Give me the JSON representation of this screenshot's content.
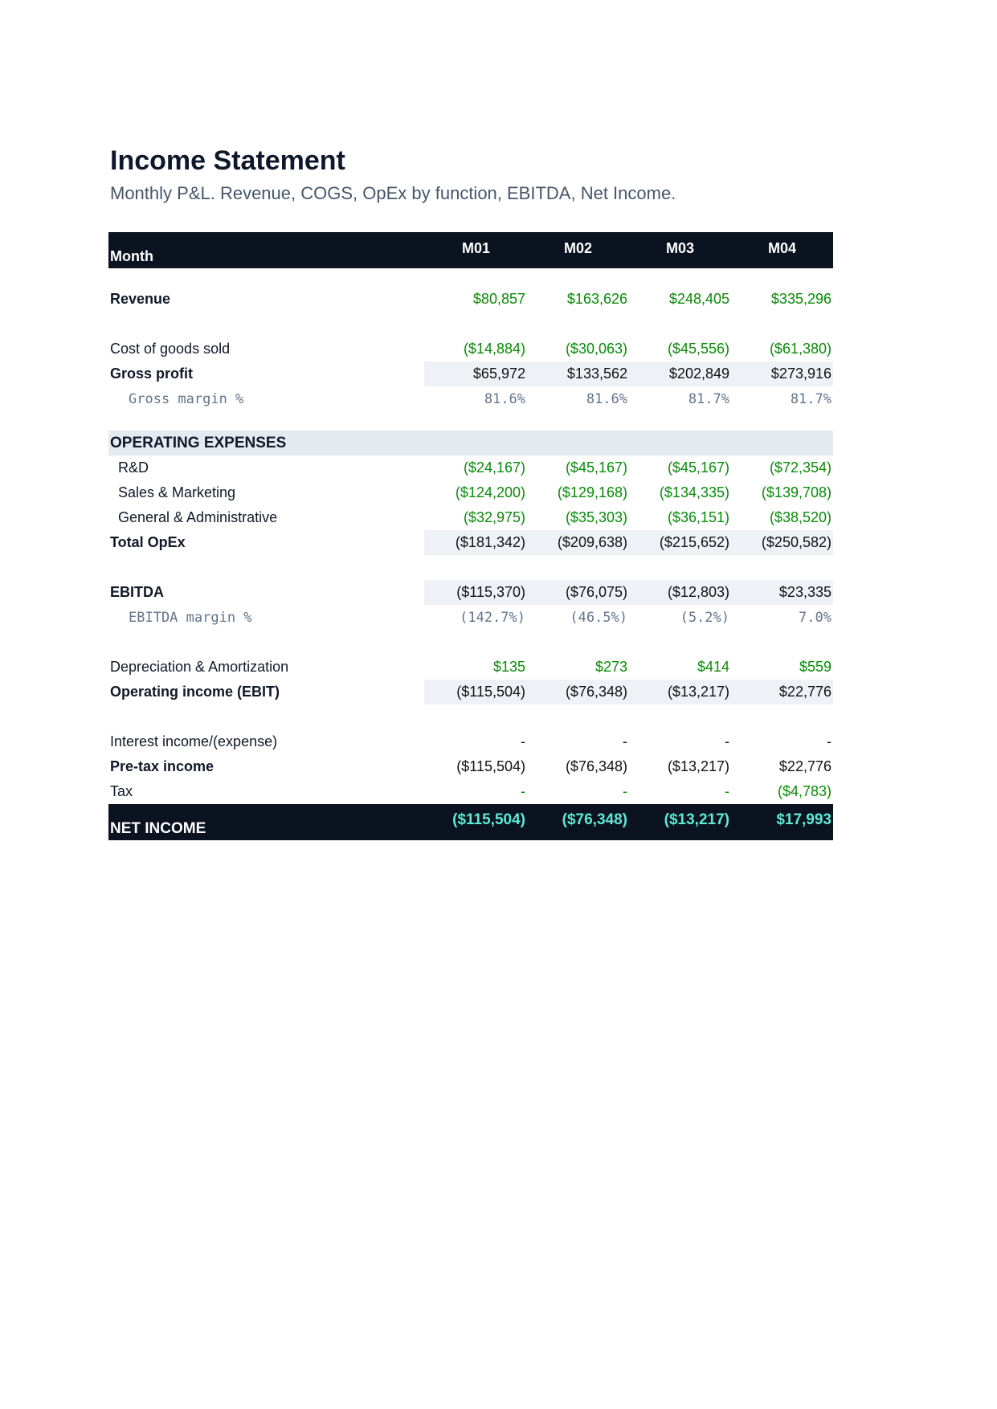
{
  "document": {
    "title": "Income Statement",
    "subtitle": "Monthly P&L. Revenue, COGS, OpEx by function, EBITDA, Net Income."
  },
  "table": {
    "header_label": "Month",
    "months": [
      "M01",
      "M02",
      "M03",
      "M04"
    ],
    "revenue": {
      "label": "Revenue",
      "values": [
        "$80,857",
        "$163,626",
        "$248,405",
        "$335,296"
      ]
    },
    "cogs": {
      "label": "Cost of goods sold",
      "values": [
        "($14,884)",
        "($30,063)",
        "($45,556)",
        "($61,380)"
      ]
    },
    "gross_profit": {
      "label": "Gross profit",
      "values": [
        "$65,972",
        "$133,562",
        "$202,849",
        "$273,916"
      ]
    },
    "gross_margin": {
      "label": "Gross margin %",
      "values": [
        "81.6%",
        "81.6%",
        "81.7%",
        "81.7%"
      ]
    },
    "opex_section": {
      "label": "OPERATING EXPENSES"
    },
    "rd": {
      "label": "R&D",
      "values": [
        "($24,167)",
        "($45,167)",
        "($45,167)",
        "($72,354)"
      ]
    },
    "sm": {
      "label": "Sales & Marketing",
      "values": [
        "($124,200)",
        "($129,168)",
        "($134,335)",
        "($139,708)"
      ]
    },
    "ga": {
      "label": "General & Administrative",
      "values": [
        "($32,975)",
        "($35,303)",
        "($36,151)",
        "($38,520)"
      ]
    },
    "total_opex": {
      "label": "Total OpEx",
      "values": [
        "($181,342)",
        "($209,638)",
        "($215,652)",
        "($250,582)"
      ]
    },
    "ebitda": {
      "label": "EBITDA",
      "values": [
        "($115,370)",
        "($76,075)",
        "($12,803)",
        "$23,335"
      ]
    },
    "ebitda_margin": {
      "label": "EBITDA margin %",
      "values": [
        "(142.7%)",
        "(46.5%)",
        "(5.2%)",
        "7.0%"
      ]
    },
    "da": {
      "label": "Depreciation & Amortization",
      "values": [
        "$135",
        "$273",
        "$414",
        "$559"
      ]
    },
    "ebit": {
      "label": "Operating income (EBIT)",
      "values": [
        "($115,504)",
        "($76,348)",
        "($13,217)",
        "$22,776"
      ]
    },
    "interest": {
      "label": "Interest income/(expense)",
      "values": [
        "-",
        "-",
        "-",
        "-"
      ]
    },
    "pretax": {
      "label": "Pre-tax income",
      "values": [
        "($115,504)",
        "($76,348)",
        "($13,217)",
        "$22,776"
      ]
    },
    "tax": {
      "label": "Tax",
      "values": [
        "-",
        "-",
        "-",
        "($4,783)"
      ]
    },
    "net_income": {
      "label": "NET INCOME",
      "values": [
        "($115,504)",
        "($76,348)",
        "($13,217)",
        "$17,993"
      ]
    }
  },
  "colors": {
    "header_bg": "#0b1220",
    "input_green": "#0a8a0a",
    "total_shade": "#eef2f7",
    "net_income_text": "#5eead4"
  }
}
